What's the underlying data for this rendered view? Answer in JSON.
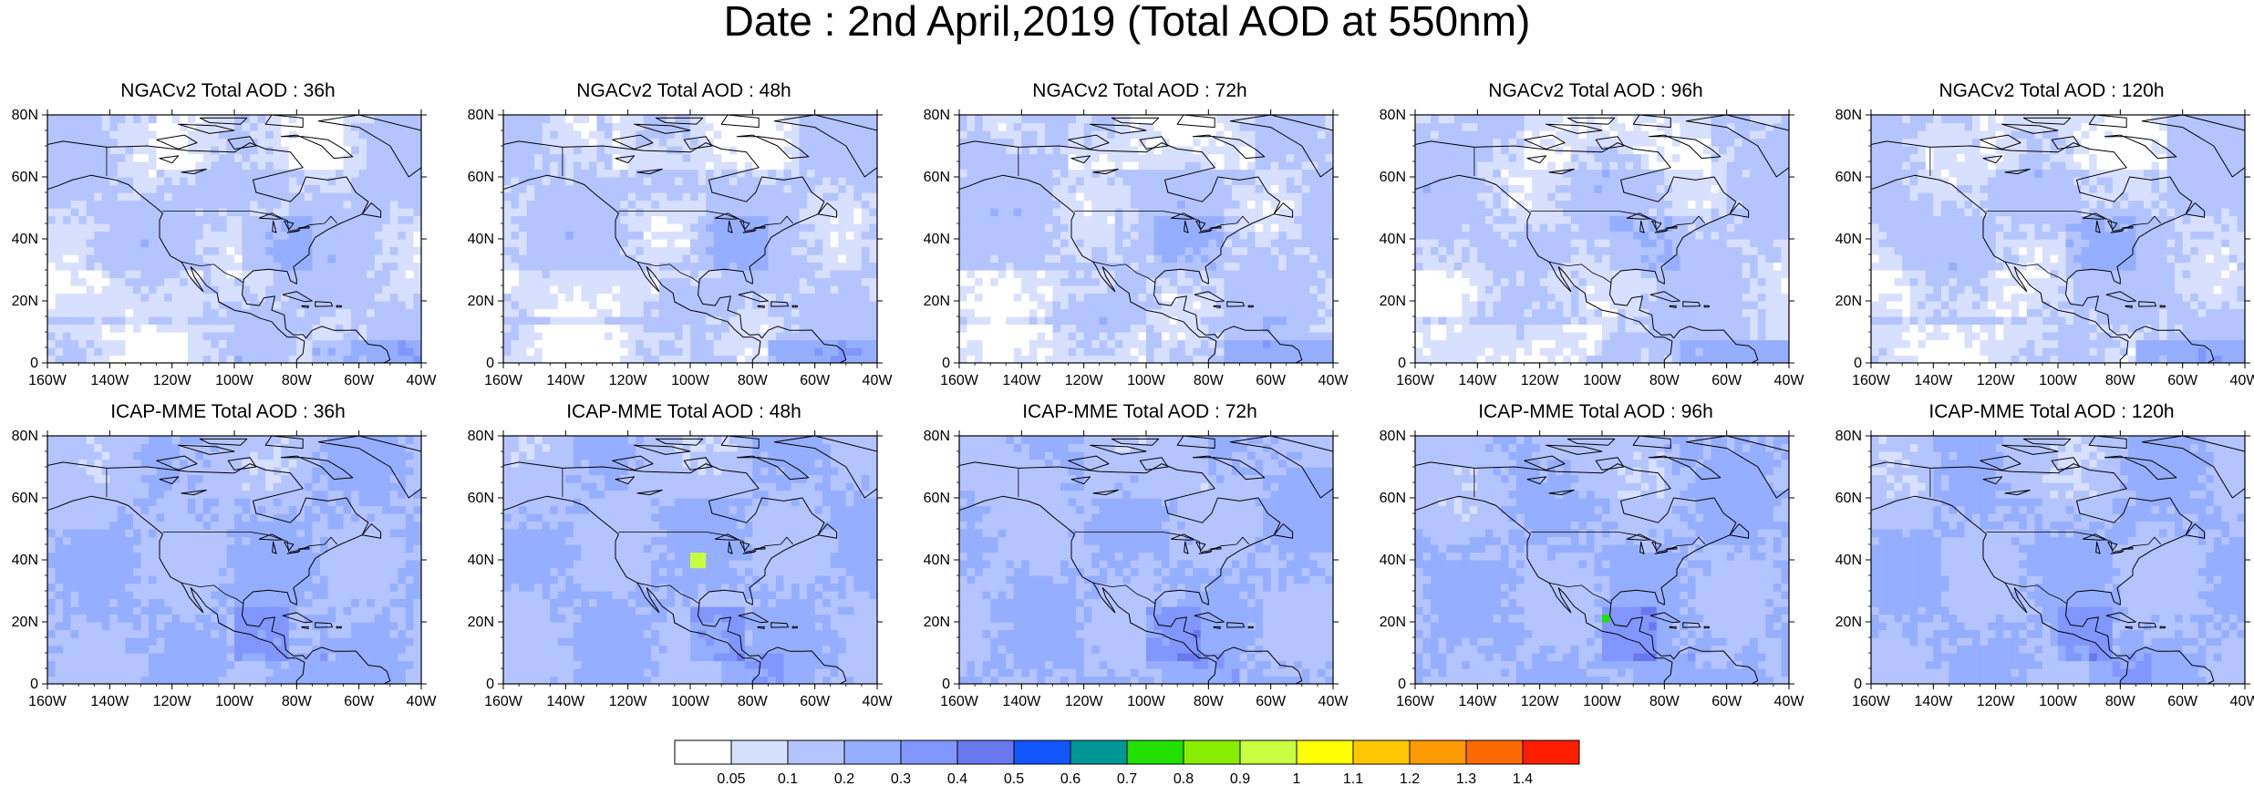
{
  "page": {
    "title": "Date : 2nd April,2019 (Total AOD at 550nm)"
  },
  "chart_data": [
    {
      "type": "heatmap",
      "title": "NGACv2 Total AOD : 36h",
      "model": "NGACv2",
      "lead": "36h",
      "xlim": [
        -160,
        -40
      ],
      "ylim": [
        0,
        80
      ],
      "xticks": [
        "160W",
        "140W",
        "120W",
        "100W",
        "80W",
        "60W",
        "40W"
      ],
      "yticks": [
        "0",
        "20N",
        "40N",
        "60N",
        "80N"
      ]
    },
    {
      "type": "heatmap",
      "title": "NGACv2 Total AOD : 48h",
      "model": "NGACv2",
      "lead": "48h",
      "xlim": [
        -160,
        -40
      ],
      "ylim": [
        0,
        80
      ],
      "xticks": [
        "160W",
        "140W",
        "120W",
        "100W",
        "80W",
        "60W",
        "40W"
      ],
      "yticks": [
        "0",
        "20N",
        "40N",
        "60N",
        "80N"
      ]
    },
    {
      "type": "heatmap",
      "title": "NGACv2 Total AOD : 72h",
      "model": "NGACv2",
      "lead": "72h",
      "xlim": [
        -160,
        -40
      ],
      "ylim": [
        0,
        80
      ],
      "xticks": [
        "160W",
        "140W",
        "120W",
        "100W",
        "80W",
        "60W",
        "40W"
      ],
      "yticks": [
        "0",
        "20N",
        "40N",
        "60N",
        "80N"
      ]
    },
    {
      "type": "heatmap",
      "title": "NGACv2 Total AOD : 96h",
      "model": "NGACv2",
      "lead": "96h",
      "xlim": [
        -160,
        -40
      ],
      "ylim": [
        0,
        80
      ],
      "xticks": [
        "160W",
        "140W",
        "120W",
        "100W",
        "80W",
        "60W",
        "40W"
      ],
      "yticks": [
        "0",
        "20N",
        "40N",
        "60N",
        "80N"
      ]
    },
    {
      "type": "heatmap",
      "title": "NGACv2 Total AOD : 120h",
      "model": "NGACv2",
      "lead": "120h",
      "xlim": [
        -160,
        -40
      ],
      "ylim": [
        0,
        80
      ],
      "xticks": [
        "160W",
        "140W",
        "120W",
        "100W",
        "80W",
        "60W",
        "40W"
      ],
      "yticks": [
        "0",
        "20N",
        "40N",
        "60N",
        "80N"
      ]
    },
    {
      "type": "heatmap",
      "title": "ICAP-MME Total AOD : 36h",
      "model": "ICAP-MME",
      "lead": "36h",
      "xlim": [
        -160,
        -40
      ],
      "ylim": [
        0,
        80
      ],
      "xticks": [
        "160W",
        "140W",
        "120W",
        "100W",
        "80W",
        "60W",
        "40W"
      ],
      "yticks": [
        "0",
        "20N",
        "40N",
        "60N",
        "80N"
      ]
    },
    {
      "type": "heatmap",
      "title": "ICAP-MME Total AOD : 48h",
      "model": "ICAP-MME",
      "lead": "48h",
      "xlim": [
        -160,
        -40
      ],
      "ylim": [
        0,
        80
      ],
      "xticks": [
        "160W",
        "140W",
        "120W",
        "100W",
        "80W",
        "60W",
        "40W"
      ],
      "yticks": [
        "0",
        "20N",
        "40N",
        "60N",
        "80N"
      ]
    },
    {
      "type": "heatmap",
      "title": "ICAP-MME Total AOD : 72h",
      "model": "ICAP-MME",
      "lead": "72h",
      "xlim": [
        -160,
        -40
      ],
      "ylim": [
        0,
        80
      ],
      "xticks": [
        "160W",
        "140W",
        "120W",
        "100W",
        "80W",
        "60W",
        "40W"
      ],
      "yticks": [
        "0",
        "20N",
        "40N",
        "60N",
        "80N"
      ]
    },
    {
      "type": "heatmap",
      "title": "ICAP-MME Total AOD : 96h",
      "model": "ICAP-MME",
      "lead": "96h",
      "xlim": [
        -160,
        -40
      ],
      "ylim": [
        0,
        80
      ],
      "xticks": [
        "160W",
        "140W",
        "120W",
        "100W",
        "80W",
        "60W",
        "40W"
      ],
      "yticks": [
        "0",
        "20N",
        "40N",
        "60N",
        "80N"
      ]
    },
    {
      "type": "heatmap",
      "title": "ICAP-MME Total AOD : 120h",
      "model": "ICAP-MME",
      "lead": "120h",
      "xlim": [
        -160,
        -40
      ],
      "ylim": [
        0,
        80
      ],
      "xticks": [
        "160W",
        "140W",
        "120W",
        "100W",
        "80W",
        "60W",
        "40W"
      ],
      "yticks": [
        "0",
        "20N",
        "40N",
        "60N",
        "80N"
      ]
    }
  ],
  "colorbar": {
    "labels": [
      "0.05",
      "0.1",
      "0.2",
      "0.3",
      "0.4",
      "0.5",
      "0.6",
      "0.7",
      "0.8",
      "0.9",
      "1",
      "1.1",
      "1.2",
      "1.3",
      "1.4"
    ],
    "colors": [
      "#ffffff",
      "#d8e0ff",
      "#b4c4ff",
      "#95aeff",
      "#8196ff",
      "#6a78f0",
      "#1256ff",
      "#009696",
      "#22e000",
      "#88ee00",
      "#c8ff40",
      "#ffff00",
      "#ffc800",
      "#ff9b00",
      "#ff6a00",
      "#ff1e00"
    ]
  },
  "colors": {
    "land_line": "#000000",
    "frame": "#000000"
  }
}
